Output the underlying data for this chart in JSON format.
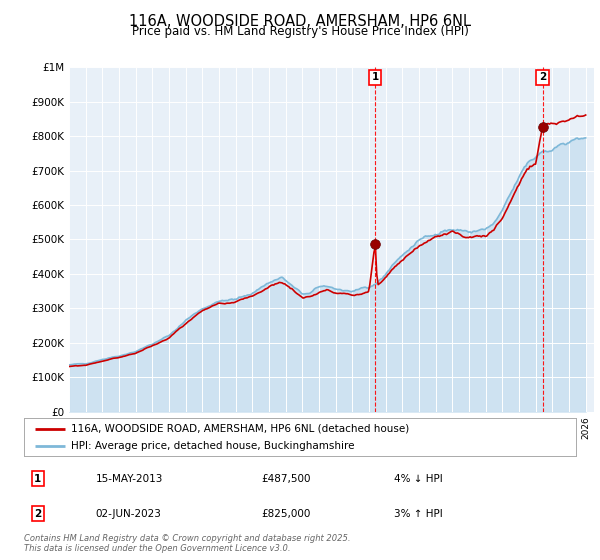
{
  "title": "116A, WOODSIDE ROAD, AMERSHAM, HP6 6NL",
  "subtitle": "Price paid vs. HM Land Registry's House Price Index (HPI)",
  "ylim": [
    0,
    1000000
  ],
  "xlim_start": 1995.0,
  "xlim_end": 2026.5,
  "yticks": [
    0,
    100000,
    200000,
    300000,
    400000,
    500000,
    600000,
    700000,
    800000,
    900000,
    1000000
  ],
  "ytick_labels": [
    "£0",
    "£100K",
    "£200K",
    "£300K",
    "£400K",
    "£500K",
    "£600K",
    "£700K",
    "£800K",
    "£900K",
    "£1M"
  ],
  "hpi_color": "#7eb8d8",
  "hpi_fill_color": "#c8dff0",
  "property_color": "#cc0000",
  "background_color": "#e8f0f8",
  "transaction1_year": 2013.37,
  "transaction1_price": 487500,
  "transaction2_year": 2023.42,
  "transaction2_price": 825000,
  "legend_line1": "116A, WOODSIDE ROAD, AMERSHAM, HP6 6NL (detached house)",
  "legend_line2": "HPI: Average price, detached house, Buckinghamshire",
  "table_entry1_date": "15-MAY-2013",
  "table_entry1_price": "£487,500",
  "table_entry1_hpi": "4% ↓ HPI",
  "table_entry2_date": "02-JUN-2023",
  "table_entry2_price": "£825,000",
  "table_entry2_hpi": "3% ↑ HPI",
  "copyright": "Contains HM Land Registry data © Crown copyright and database right 2025.\nThis data is licensed under the Open Government Licence v3.0."
}
